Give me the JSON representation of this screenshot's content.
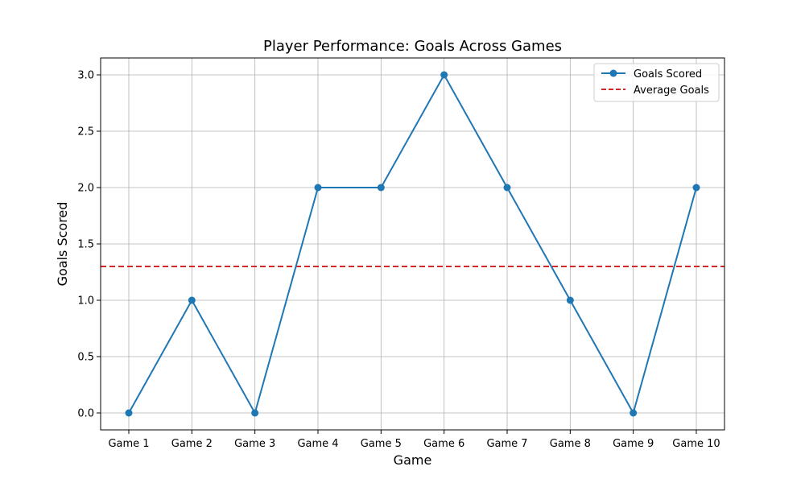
{
  "chart_data": {
    "type": "line",
    "title": "Player Performance: Goals Across Games",
    "xlabel": "Game",
    "ylabel": "Goals Scored",
    "categories": [
      "Game 1",
      "Game 2",
      "Game 3",
      "Game 4",
      "Game 5",
      "Game 6",
      "Game 7",
      "Game 8",
      "Game 9",
      "Game 10"
    ],
    "series": [
      {
        "name": "Goals Scored",
        "values": [
          0,
          1,
          0,
          2,
          2,
          3,
          2,
          1,
          0,
          2
        ],
        "color": "#1f77b4"
      }
    ],
    "reference_lines": [
      {
        "name": "Average Goals",
        "value": 1.3,
        "color": "#d62728",
        "style": "dashed"
      }
    ],
    "ylim": [
      -0.15,
      3.15
    ],
    "yticks": [
      "0.0",
      "0.5",
      "1.0",
      "1.5",
      "2.0",
      "2.5",
      "3.0"
    ],
    "grid": true,
    "legend_position": "top-right"
  }
}
